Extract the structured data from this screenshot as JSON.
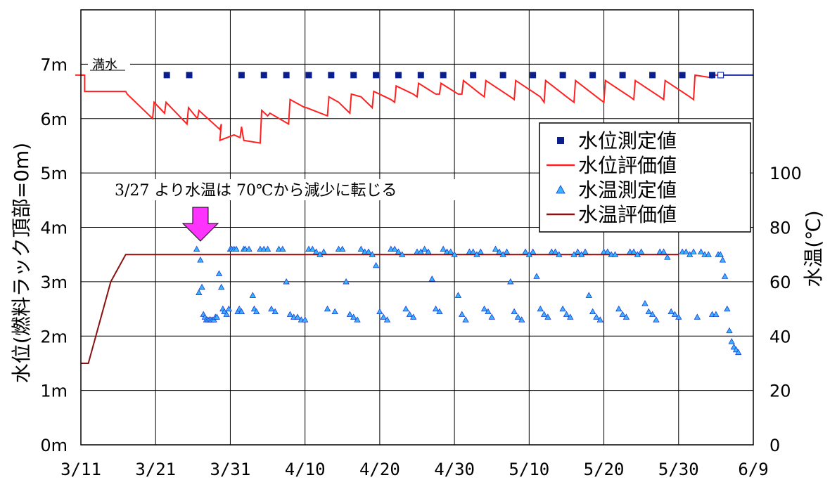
{
  "chart_data": {
    "type": "line",
    "title": "",
    "xlabel": "",
    "x_ticks": [
      "3/11",
      "3/21",
      "3/31",
      "4/10",
      "4/20",
      "4/30",
      "5/10",
      "5/20",
      "5/30",
      "6/9"
    ],
    "x_range_days": [
      0,
      90
    ],
    "ylabel_left": "水位(燃料ラック頂部=0m)",
    "ylabel_right": "水温(℃)",
    "y_left_ticks": [
      "0m",
      "1m",
      "2m",
      "3m",
      "4m",
      "5m",
      "6m",
      "7m"
    ],
    "y_left_range": [
      0,
      8
    ],
    "y_right_ticks": [
      "0",
      "20",
      "40",
      "60",
      "80",
      "100"
    ],
    "y_right_range": [
      0,
      160
    ],
    "grid": true,
    "legend_position": "right",
    "colors": {
      "level_measured": "#0a1e8c",
      "level_eval": "#ff2020",
      "temp_measured_fill": "#39b5ff",
      "temp_measured_stroke": "#1a3cd0",
      "temp_eval": "#8b1010",
      "full_line": "#1a2a9c",
      "arrow": "#ff33ff"
    },
    "legend": [
      {
        "key": "level_measured",
        "label": "水位測定値"
      },
      {
        "key": "level_eval",
        "label": "水位評価値"
      },
      {
        "key": "temp_measured",
        "label": "水温測定値"
      },
      {
        "key": "temp_eval",
        "label": "水温評価値"
      }
    ],
    "annotations": {
      "full_label": "満水",
      "temp_note": "3/27 より水温は 70℃から減少に転じる",
      "temp_note_day": 16
    },
    "full_level_m": 6.8,
    "series": {
      "level_measured": {
        "x_days": [
          11.5,
          14.5,
          21.5,
          24.5,
          27.5,
          30.5,
          33.5,
          36.5,
          39.5,
          42.5,
          45.5,
          48.5,
          52.5,
          56.5,
          60.5,
          64.5,
          68.5,
          72.5,
          76.5,
          80.5,
          84.5
        ],
        "y_m": [
          6.8,
          6.8,
          6.8,
          6.8,
          6.8,
          6.8,
          6.8,
          6.8,
          6.8,
          6.8,
          6.8,
          6.8,
          6.8,
          6.8,
          6.8,
          6.8,
          6.8,
          6.8,
          6.8,
          6.8,
          6.8
        ]
      },
      "level_eval": {
        "x_days": [
          0,
          0.5,
          0.5,
          6,
          6.2,
          9.6,
          9.8,
          11.2,
          11.4,
          14.2,
          14.4,
          15.6,
          15.8,
          18.6,
          18.8,
          18.6,
          20.5,
          21.3,
          21.5,
          21.8,
          24,
          24.2,
          25,
          25.3,
          27.8,
          28,
          30,
          30.2,
          33,
          33.2,
          34.5,
          36,
          36.2,
          37.5,
          39,
          39.2,
          41.5,
          42,
          42.2,
          44.5,
          45,
          45.2,
          47.5,
          48,
          48.2,
          50.5,
          51,
          51.2,
          53.5,
          54,
          54.2,
          57.5,
          58,
          58.2,
          61.5,
          62,
          62.2,
          65.5,
          66,
          66.2,
          69.5,
          70,
          70.2,
          73.5,
          74,
          74.2,
          77.5,
          78,
          78.2,
          81.5,
          82,
          82.2,
          84.5,
          84.7,
          85.2
        ],
        "y_m": [
          6.8,
          6.8,
          6.5,
          6.5,
          6.45,
          6.0,
          6.3,
          6.1,
          6.3,
          5.9,
          6.2,
          6.0,
          6.15,
          5.8,
          5.9,
          5.6,
          5.7,
          5.65,
          5.85,
          5.6,
          5.55,
          6.15,
          6.05,
          6.1,
          5.9,
          6.35,
          6.2,
          6.2,
          6.05,
          6.4,
          6.3,
          6.1,
          6.45,
          6.4,
          6.2,
          6.5,
          6.35,
          6.3,
          6.6,
          6.45,
          6.4,
          6.65,
          6.45,
          6.45,
          6.65,
          6.45,
          6.45,
          6.7,
          6.45,
          6.4,
          6.7,
          6.4,
          6.35,
          6.7,
          6.4,
          6.3,
          6.7,
          6.35,
          6.3,
          6.7,
          6.35,
          6.3,
          6.7,
          6.4,
          6.35,
          6.7,
          6.4,
          6.35,
          6.7,
          6.4,
          6.35,
          6.8,
          6.75,
          6.8,
          6.8
        ]
      },
      "temp_eval": {
        "x_days": [
          0,
          1,
          2,
          3,
          4,
          5,
          6,
          80
        ],
        "y_c": [
          30,
          30,
          40,
          50,
          60,
          65,
          70,
          70
        ]
      },
      "temp_measured": {
        "x_days": [
          15.5,
          15.8,
          16.0,
          16.2,
          16.4,
          16.6,
          16.8,
          17.0,
          17.2,
          17.4,
          17.6,
          17.8,
          18.0,
          18.2,
          18.5,
          18.8,
          19.0,
          19.2,
          19.5,
          19.8,
          20.0,
          20.2,
          20.5,
          20.8,
          21.0,
          21.2,
          21.5,
          21.8,
          22.0,
          22.5,
          23.0,
          23.2,
          23.5,
          24.0,
          24.5,
          25.0,
          25.5,
          26.0,
          26.5,
          27.0,
          27.5,
          28.0,
          28.5,
          29.0,
          29.5,
          30.0,
          30.5,
          31.0,
          31.5,
          32.0,
          32.5,
          33.0,
          34.0,
          34.5,
          35.0,
          35.5,
          36.0,
          36.5,
          37.0,
          37.5,
          38.0,
          38.5,
          39.0,
          39.5,
          40.0,
          40.5,
          41.0,
          41.5,
          42.0,
          42.5,
          43.0,
          43.5,
          44.0,
          44.5,
          45.0,
          45.5,
          46.0,
          46.5,
          47.0,
          47.5,
          48.0,
          48.5,
          49.0,
          49.5,
          50.0,
          50.5,
          51.0,
          51.5,
          52.0,
          52.5,
          53.0,
          53.5,
          54.0,
          54.5,
          55.0,
          55.5,
          56.0,
          56.5,
          57.0,
          57.5,
          58.0,
          58.5,
          59.0,
          59.5,
          60.0,
          60.5,
          61.0,
          61.5,
          62.0,
          62.5,
          63.0,
          63.5,
          64.0,
          64.5,
          65.0,
          65.5,
          66.0,
          66.5,
          67.0,
          67.5,
          68.0,
          68.5,
          69.0,
          69.5,
          70.0,
          70.5,
          71.0,
          71.5,
          72.0,
          72.5,
          73.0,
          73.5,
          74.0,
          74.5,
          75.0,
          75.5,
          76.0,
          76.5,
          77.0,
          77.5,
          78.0,
          78.5,
          79.0,
          79.5,
          80.0,
          80.5,
          81.0,
          81.5,
          82.0,
          82.5,
          83.0,
          83.5,
          84.0,
          84.5,
          85.0,
          85.3,
          85.6,
          85.9,
          86.2,
          86.5,
          86.8,
          87.1,
          87.4,
          87.7,
          88.0
        ],
        "y_c": [
          72,
          56,
          68,
          58,
          48,
          47,
          46,
          46,
          46,
          46,
          46,
          46,
          47,
          47,
          63,
          58,
          50,
          49,
          48,
          50,
          72,
          72,
          72,
          72,
          49,
          50,
          49,
          72,
          72,
          72,
          55,
          50,
          49,
          72,
          72,
          72,
          50,
          49,
          72,
          72,
          60,
          48,
          47,
          47,
          46,
          46,
          72,
          72,
          71,
          70,
          71,
          50,
          49,
          72,
          72,
          60,
          48,
          47,
          46,
          72,
          71,
          71,
          70,
          66,
          49,
          47,
          46,
          72,
          72,
          71,
          70,
          50,
          48,
          47,
          71,
          71,
          72,
          71,
          61,
          50,
          49,
          72,
          71,
          71,
          70,
          55,
          48,
          46,
          71,
          71,
          70,
          71,
          50,
          49,
          47,
          72,
          71,
          70,
          71,
          60,
          49,
          47,
          46,
          71,
          70,
          71,
          62,
          50,
          48,
          47,
          71,
          71,
          70,
          50,
          48,
          47,
          70,
          71,
          70,
          71,
          55,
          49,
          47,
          46,
          71,
          71,
          70,
          70,
          50,
          48,
          47,
          71,
          71,
          70,
          71,
          52,
          49,
          48,
          46,
          71,
          71,
          69,
          49,
          48,
          47,
          71,
          71,
          70,
          71,
          47,
          71,
          70,
          70,
          48,
          48,
          70,
          70,
          68,
          62,
          50,
          42,
          38,
          36,
          35,
          34,
          33,
          33
        ]
      }
    }
  }
}
